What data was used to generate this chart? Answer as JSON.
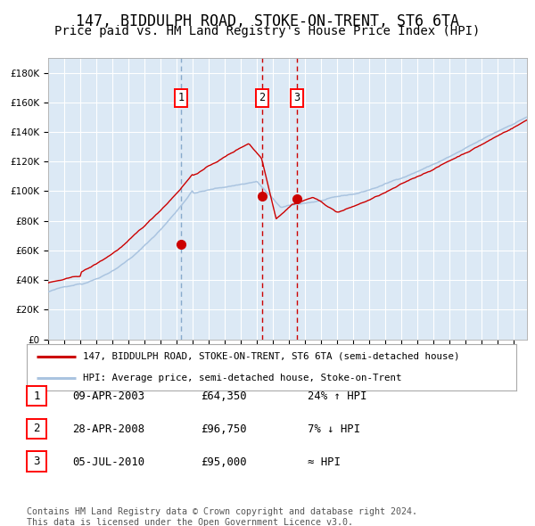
{
  "title": "147, BIDDULPH ROAD, STOKE-ON-TRENT, ST6 6TA",
  "subtitle": "Price paid vs. HM Land Registry's House Price Index (HPI)",
  "legend_line1": "147, BIDDULPH ROAD, STOKE-ON-TRENT, ST6 6TA (semi-detached house)",
  "legend_line2": "HPI: Average price, semi-detached house, Stoke-on-Trent",
  "footer1": "Contains HM Land Registry data © Crown copyright and database right 2024.",
  "footer2": "This data is licensed under the Open Government Licence v3.0.",
  "transactions": [
    {
      "label": "1",
      "date": "09-APR-2003",
      "price": "£64,350",
      "note": "24% ↑ HPI",
      "x_year": 2003.27,
      "y_val": 64350
    },
    {
      "label": "2",
      "date": "28-APR-2008",
      "price": "£96,750",
      "note": "7% ↓ HPI",
      "x_year": 2008.32,
      "y_val": 96750
    },
    {
      "label": "3",
      "date": "05-JUL-2010",
      "price": "£95,000",
      "note": "≈ HPI",
      "x_year": 2010.5,
      "y_val": 95000
    }
  ],
  "ylim": [
    0,
    190000
  ],
  "xlim_start": 1995.0,
  "xlim_end": 2024.83,
  "background_color": "#dce9f5",
  "grid_color": "#ffffff",
  "hpi_line_color": "#aac4e0",
  "price_line_color": "#cc0000",
  "dot_color": "#cc0000",
  "title_fontsize": 12,
  "subtitle_fontsize": 10
}
